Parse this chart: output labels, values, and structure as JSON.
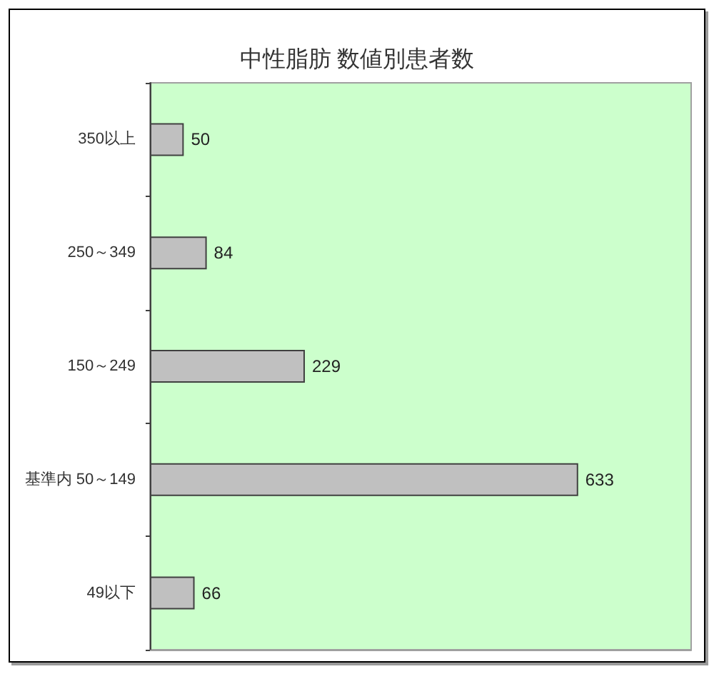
{
  "chart_data": {
    "type": "bar",
    "orientation": "horizontal",
    "title": "中性脂肪 数値別患者数",
    "categories": [
      "350以上",
      "250～349",
      "150～249",
      "基準内 50～149",
      "49以下"
    ],
    "values": [
      50,
      84,
      229,
      633,
      66
    ],
    "color": "#c0c0c0",
    "xlim": [
      0,
      800
    ],
    "tick_labels": "y",
    "data_labels": true,
    "grid": false
  }
}
